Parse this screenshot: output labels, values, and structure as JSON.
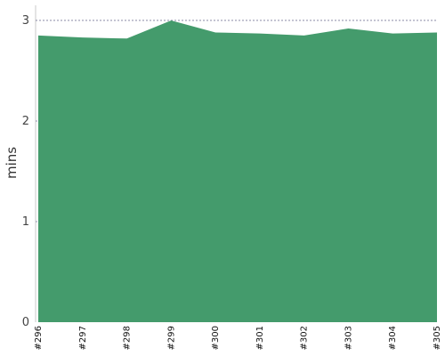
{
  "chart_data": {
    "type": "area",
    "title": "",
    "xlabel": "",
    "ylabel": "mins",
    "x": [
      "#296",
      "#297",
      "#298",
      "#299",
      "#300",
      "#301",
      "#302",
      "#303",
      "#304",
      "#305"
    ],
    "series": [
      {
        "values": [
          2.85,
          2.83,
          2.82,
          3.0,
          2.88,
          2.87,
          2.85,
          2.92,
          2.87,
          2.88
        ]
      }
    ],
    "ylim": [
      0,
      3.15
    ],
    "yticks": [
      "0",
      "1",
      "2",
      "3"
    ],
    "grid": true,
    "legend": "none",
    "colors": {
      "fill": "#449b6c",
      "grid": "#7a7a9a",
      "axis": "#c9c9c9"
    }
  }
}
